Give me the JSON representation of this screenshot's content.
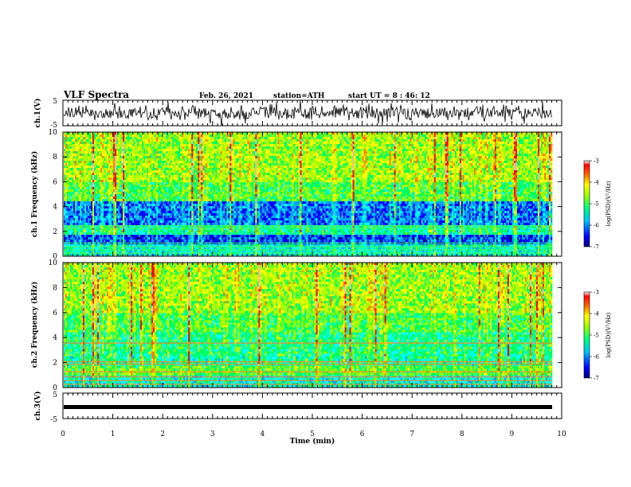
{
  "header": {
    "title": "VLF Spectra",
    "date": "Feb. 26, 2021",
    "station": "station=ATH",
    "start": "start UT =  8 : 46: 12"
  },
  "chart_data": [
    {
      "type": "line",
      "panel": "ch1-waveform",
      "ylabel": "ch.1(V)",
      "ylim": [
        -5,
        5
      ],
      "yticks": [
        "5",
        "-5"
      ],
      "xlim": [
        0,
        10
      ]
    },
    {
      "type": "heatmap",
      "panel": "ch1-spectrogram",
      "ylabel": "ch.1 Frequency (kHz)",
      "ylim": [
        0,
        10
      ],
      "yticks": [
        "0",
        "2",
        "4",
        "6",
        "8",
        "10"
      ],
      "xlim": [
        0,
        10
      ],
      "colorbar": {
        "label": "log(PSD)(V²/Hz)",
        "ticks": [
          "-3",
          "-4",
          "-5",
          "-6",
          "-7"
        ],
        "range": [
          -7,
          -3
        ]
      }
    },
    {
      "type": "heatmap",
      "panel": "ch2-spectrogram",
      "ylabel": "ch.2 Frequency (kHz)",
      "ylim": [
        0,
        10
      ],
      "yticks": [
        "0",
        "2",
        "4",
        "6",
        "8",
        "10"
      ],
      "xlim": [
        0,
        10
      ],
      "colorbar": {
        "label": "log(PSD)(V²/Hz)",
        "ticks": [
          "-3",
          "-4",
          "-5",
          "-6",
          "-7"
        ],
        "range": [
          -7,
          -3
        ]
      }
    },
    {
      "type": "line",
      "panel": "ch3-waveform",
      "ylabel": "ch.3(V)",
      "ylim": [
        -5,
        5
      ],
      "yticks": [
        "5",
        "-5"
      ],
      "xlim": [
        0,
        10
      ],
      "xlabel": "Time (min)",
      "xticks": [
        "0",
        "1",
        "2",
        "3",
        "4",
        "5",
        "6",
        "7",
        "8",
        "9",
        "10"
      ]
    }
  ],
  "colors": {
    "colormap": [
      "#000080",
      "#0000ff",
      "#00a0ff",
      "#00ffff",
      "#00ff60",
      "#a0ff00",
      "#ffff00",
      "#ff8000",
      "#ff0000",
      "#ffb0b0",
      "#ffffff"
    ]
  }
}
